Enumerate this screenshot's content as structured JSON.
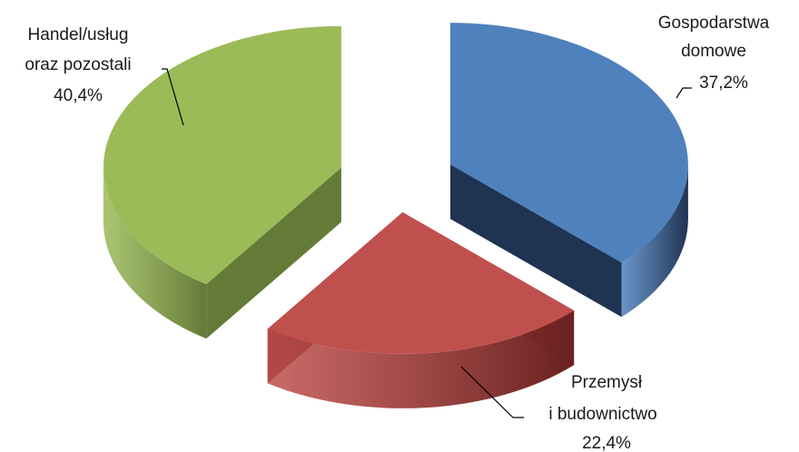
{
  "chart_data": {
    "type": "pie",
    "style": "3d-exploded",
    "title": "",
    "legend": "none",
    "slices": [
      {
        "key": "households",
        "label_lines": [
          "Gospodarstwa",
          "domowe"
        ],
        "value_label": "37,2%",
        "value": 37.2,
        "color": "#4F81BD",
        "side_color": "#1F3352"
      },
      {
        "key": "industry",
        "label_lines": [
          "Przemysł",
          "i budownictwo"
        ],
        "value_label": "22,4%",
        "value": 22.4,
        "color": "#C0504D",
        "side_color": "#6A2120"
      },
      {
        "key": "trade",
        "label_lines": [
          "Handel/usług",
          "oraz pozostali"
        ],
        "value_label": "40,4%",
        "value": 40.4,
        "color": "#9BBB59",
        "side_color": "#647B38"
      }
    ]
  }
}
